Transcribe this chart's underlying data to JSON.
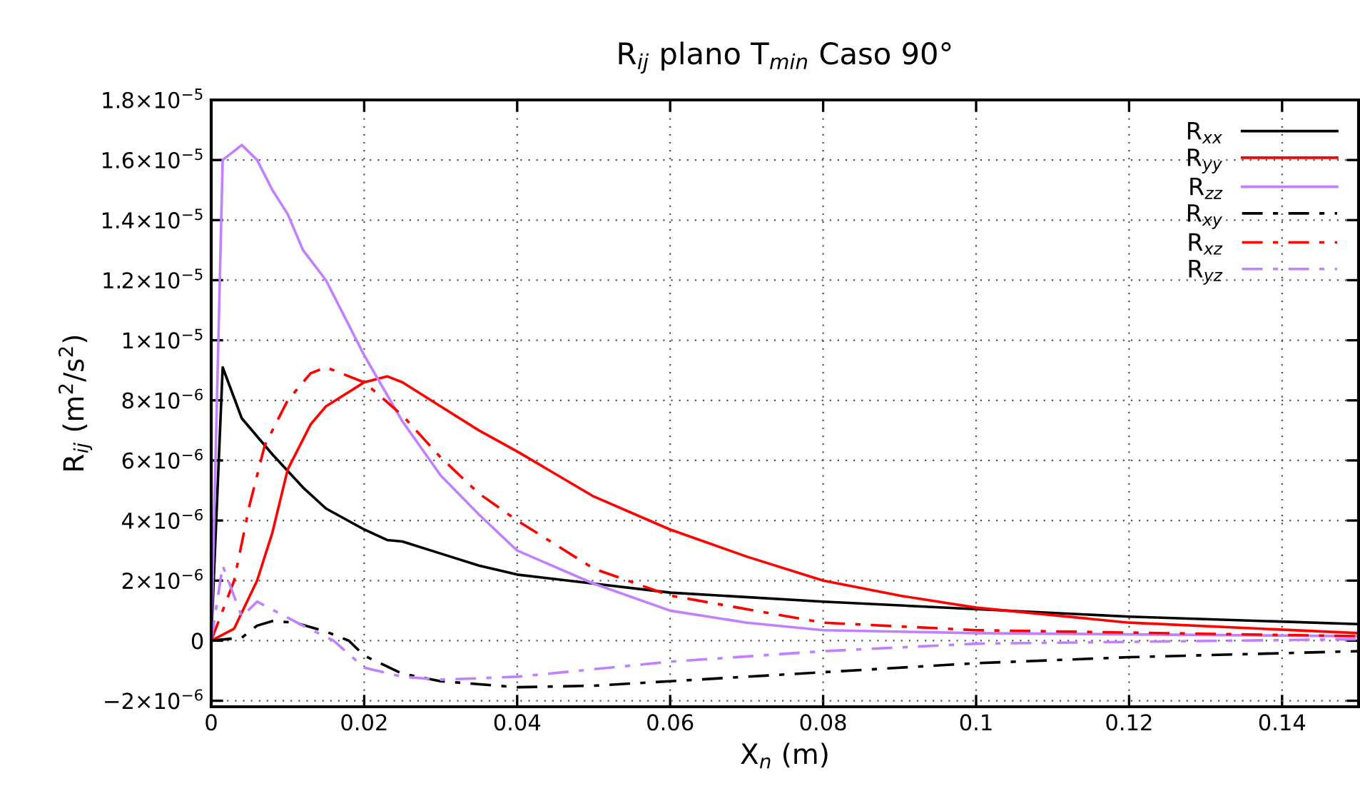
{
  "chart_data": {
    "type": "line",
    "title": "R$_{ij}$ plano T$_{min}$ Caso 90°",
    "xlabel": "X$_{n}$ (m)",
    "ylabel": "R$_{ij}$ (m$^{2}$/s$^{2}$)",
    "xlim": [
      0,
      0.15
    ],
    "xticks": [
      0,
      0.02,
      0.04,
      0.06,
      0.08,
      0.1,
      0.12,
      0.14
    ],
    "ylim": [
      -2.2e-06,
      1.8e-05
    ],
    "yticks": [
      {
        "value": -2e-06,
        "label": "−2×10$^{−6}$"
      },
      0,
      {
        "value": 2e-06,
        "label": "2×10$^{−6}$"
      },
      {
        "value": 4e-06,
        "label": "4×10$^{−6}$"
      },
      {
        "value": 6e-06,
        "label": "6×10$^{−6}$"
      },
      {
        "value": 8e-06,
        "label": "8×10$^{−6}$"
      },
      {
        "value": 1e-05,
        "label": "1×10$^{−5}$"
      },
      {
        "value": 1.2e-05,
        "label": "1.2×10$^{−5}$"
      },
      {
        "value": 1.4e-05,
        "label": "1.4×10$^{−5}$"
      },
      {
        "value": 1.6e-05,
        "label": "1.6×10$^{−5}$"
      },
      {
        "value": 1.8e-05,
        "label": "1.8×10$^{−5}$"
      }
    ],
    "grid": true,
    "legend": "top right",
    "marker": "none",
    "series": [
      {
        "name": "R$_{xx}$",
        "color": "#000000",
        "line_style": "solid",
        "x": [
          0,
          0.0015,
          0.004,
          0.008,
          0.012,
          0.015,
          0.02,
          0.023,
          0.025,
          0.03,
          0.035,
          0.04,
          0.05,
          0.06,
          0.08,
          0.1,
          0.12,
          0.15
        ],
        "values": [
          0,
          9.1e-06,
          7.4e-06,
          6.2e-06,
          5.1e-06,
          4.4e-06,
          3.7e-06,
          3.35e-06,
          3.3e-06,
          2.9e-06,
          2.5e-06,
          2.2e-06,
          1.9e-06,
          1.6e-06,
          1.3e-06,
          1.05e-06,
          8e-07,
          5.5e-07
        ]
      },
      {
        "name": "R$_{yy}$",
        "color": "#ff0000",
        "line_style": "solid",
        "x": [
          0,
          0.003,
          0.006,
          0.008,
          0.01,
          0.013,
          0.015,
          0.02,
          0.023,
          0.025,
          0.03,
          0.035,
          0.04,
          0.05,
          0.06,
          0.07,
          0.08,
          0.09,
          0.1,
          0.12,
          0.15
        ],
        "values": [
          0,
          4e-07,
          2e-06,
          3.6e-06,
          5.7e-06,
          7.2e-06,
          7.8e-06,
          8.6e-06,
          8.8e-06,
          8.6e-06,
          7.8e-06,
          7e-06,
          6.3e-06,
          4.8e-06,
          3.7e-06,
          2.8e-06,
          2e-06,
          1.5e-06,
          1.1e-06,
          6e-07,
          2.5e-07
        ]
      },
      {
        "name": "R$_{zz}$",
        "color": "#c080ff",
        "line_style": "solid",
        "x": [
          0,
          0.0015,
          0.004,
          0.006,
          0.008,
          0.01,
          0.012,
          0.015,
          0.018,
          0.02,
          0.025,
          0.03,
          0.035,
          0.04,
          0.05,
          0.06,
          0.07,
          0.08,
          0.1,
          0.15
        ],
        "values": [
          0,
          1.6e-05,
          1.65e-05,
          1.6e-05,
          1.5e-05,
          1.42e-05,
          1.3e-05,
          1.2e-05,
          1.05e-05,
          9.5e-06,
          7.3e-06,
          5.5e-06,
          4.2e-06,
          3e-06,
          1.9e-06,
          1e-06,
          6e-07,
          3.5e-07,
          2.5e-07,
          1.5e-07
        ]
      },
      {
        "name": "R$_{xy}$",
        "color": "#000000",
        "line_style": "dashdot",
        "x": [
          0,
          0.004,
          0.006,
          0.008,
          0.011,
          0.015,
          0.018,
          0.02,
          0.025,
          0.03,
          0.04,
          0.05,
          0.06,
          0.08,
          0.1,
          0.12,
          0.15
        ],
        "values": [
          0,
          1e-07,
          5e-07,
          6.5e-07,
          6e-07,
          3e-07,
          0,
          -5e-07,
          -1.1e-06,
          -1.35e-06,
          -1.55e-06,
          -1.5e-06,
          -1.35e-06,
          -1.05e-06,
          -7.5e-07,
          -5.5e-07,
          -3.5e-07
        ]
      },
      {
        "name": "R$_{xz}$",
        "color": "#ff0000",
        "line_style": "dashdot",
        "x": [
          0,
          0.003,
          0.005,
          0.007,
          0.01,
          0.013,
          0.015,
          0.02,
          0.025,
          0.03,
          0.035,
          0.04,
          0.05,
          0.06,
          0.08,
          0.1,
          0.15
        ],
        "values": [
          0,
          2e-06,
          4.5e-06,
          6.5e-06,
          8e-06,
          8.9e-06,
          9.1e-06,
          8.6e-06,
          7.5e-06,
          6.1e-06,
          4.9e-06,
          4e-06,
          2.4e-06,
          1.5e-06,
          6e-07,
          3.5e-07,
          1.5e-07
        ]
      },
      {
        "name": "R$_{yz}$",
        "color": "#c080ff",
        "line_style": "dashdot",
        "x": [
          0,
          0.0015,
          0.004,
          0.006,
          0.009,
          0.012,
          0.016,
          0.02,
          0.025,
          0.03,
          0.04,
          0.06,
          0.08,
          0.1,
          0.15
        ],
        "values": [
          0,
          2.5e-06,
          8e-07,
          1.3e-06,
          9e-07,
          5e-07,
          0,
          -9e-07,
          -1.2e-06,
          -1.3e-06,
          -1.2e-06,
          -7e-07,
          -3.5e-07,
          -1e-07,
          5e-08
        ]
      }
    ]
  }
}
